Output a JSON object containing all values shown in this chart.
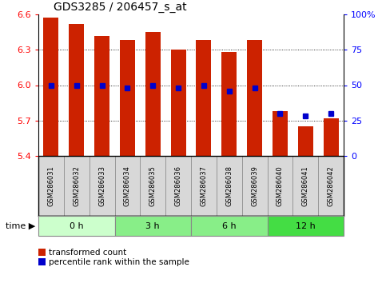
{
  "title": "GDS3285 / 206457_s_at",
  "samples": [
    "GSM286031",
    "GSM286032",
    "GSM286033",
    "GSM286034",
    "GSM286035",
    "GSM286036",
    "GSM286037",
    "GSM286038",
    "GSM286039",
    "GSM286040",
    "GSM286041",
    "GSM286042"
  ],
  "bar_values": [
    6.57,
    6.52,
    6.42,
    6.38,
    6.45,
    6.3,
    6.38,
    6.28,
    6.38,
    5.78,
    5.65,
    5.72
  ],
  "percentile_values": [
    50,
    50,
    50,
    48,
    50,
    48,
    50,
    46,
    48,
    30,
    28,
    30
  ],
  "bar_color": "#cc2200",
  "dot_color": "#0000cc",
  "ylim": [
    5.4,
    6.6
  ],
  "yticks_left": [
    5.4,
    5.7,
    6.0,
    6.3,
    6.6
  ],
  "yticks_right_vals": [
    0,
    25,
    50,
    75,
    100
  ],
  "yticks_right_labels": [
    "0",
    "25",
    "50",
    "75",
    "100%"
  ],
  "ybase": 5.4,
  "grid_values": [
    5.7,
    6.0,
    6.3
  ],
  "groups": [
    {
      "label": "0 h",
      "start": 0,
      "end": 3
    },
    {
      "label": "3 h",
      "start": 3,
      "end": 6
    },
    {
      "label": "6 h",
      "start": 6,
      "end": 9
    },
    {
      "label": "12 h",
      "start": 9,
      "end": 12
    }
  ],
  "group_colors": [
    "#ccffcc",
    "#88ee88",
    "#88ee88",
    "#44dd44"
  ],
  "legend_bar_label": "transformed count",
  "legend_dot_label": "percentile rank within the sample",
  "label_box_color": "#d8d8d8",
  "label_box_edge": "#888888"
}
